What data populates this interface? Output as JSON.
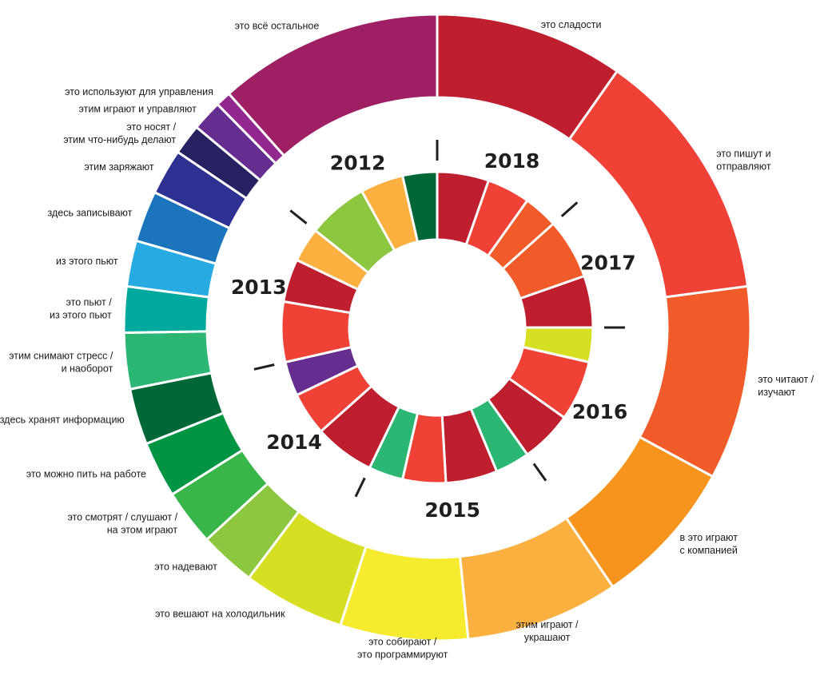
{
  "chart_data": {
    "type": "pie",
    "outer_ring": {
      "categories": [
        {
          "label": [
            "это сладости"
          ],
          "value": 37,
          "color": "#be1e2d"
        },
        {
          "label": [
            "это пишут и",
            "отправляют"
          ],
          "value": 50,
          "color": "#ef4136"
        },
        {
          "label": [
            "это читают /",
            "изучают"
          ],
          "value": 38,
          "color": "#f15a29"
        },
        {
          "label": [
            "в это играют",
            "с компанией"
          ],
          "value": 29,
          "color": "#f7941d"
        },
        {
          "label": [
            "этим играют /",
            "украшают"
          ],
          "value": 30,
          "color": "#fbb040"
        },
        {
          "label": [
            "это собирают /",
            "это программируют"
          ],
          "value": 25,
          "color": "#f6eb2e"
        },
        {
          "label": [
            "это вешают на холодильник"
          ],
          "value": 20,
          "color": "#d7df23"
        },
        {
          "label": [
            "это надевают"
          ],
          "value": 11,
          "color": "#8dc63f"
        },
        {
          "label": [
            "это смотрят / слушают /",
            "на этом играют"
          ],
          "value": 11,
          "color": "#39b54a"
        },
        {
          "label": [
            "это можно пить на работе"
          ],
          "value": 11,
          "color": "#009444"
        },
        {
          "label": [
            "здесь хранят информацию"
          ],
          "value": 11,
          "color": "#006838"
        },
        {
          "label": [
            "этим снимают стресс /",
            "и наоборот"
          ],
          "value": 11,
          "color": "#2bb673"
        },
        {
          "label": [
            "это пьют /",
            "из этого пьют"
          ],
          "value": 9,
          "color": "#00a99d"
        },
        {
          "label": [
            "из этого пьют"
          ],
          "value": 9,
          "color": "#27aae1"
        },
        {
          "label": [
            "здесь записывают"
          ],
          "value": 10,
          "color": "#1c75bc"
        },
        {
          "label": [
            "этим заряжают"
          ],
          "value": 9,
          "color": "#2e3192"
        },
        {
          "label": [
            "это носят /",
            "этим что-нибудь делают"
          ],
          "value": 6,
          "color": "#262262"
        },
        {
          "label": [
            "этим играют и управляют"
          ],
          "value": 6,
          "color": "#662d91"
        },
        {
          "label": [
            "это используют для управления"
          ],
          "value": 3,
          "color": "#92278f"
        },
        {
          "label": [
            "это всё остальное"
          ],
          "value": 44,
          "color": "#9e1f63"
        }
      ]
    },
    "inner_ring": {
      "years": [
        "2018",
        "2017",
        "2016",
        "2015",
        "2014",
        "2013",
        "2012"
      ],
      "segments": [
        {
          "year": "2018",
          "value": 6,
          "color": "#be1e2d"
        },
        {
          "year": "2018",
          "value": 5,
          "color": "#ef4136"
        },
        {
          "year": "2018",
          "value": 4,
          "color": "#f15a29"
        },
        {
          "year": "2017",
          "value": 7,
          "color": "#f15a29"
        },
        {
          "year": "2017",
          "value": 6,
          "color": "#be1e2d"
        },
        {
          "year": "2016",
          "value": 4,
          "color": "#d7df23"
        },
        {
          "year": "2016",
          "value": 7,
          "color": "#ef4136"
        },
        {
          "year": "2016",
          "value": 6,
          "color": "#be1e2d"
        },
        {
          "year": "2015",
          "value": 4,
          "color": "#2bb673"
        },
        {
          "year": "2015",
          "value": 6,
          "color": "#be1e2d"
        },
        {
          "year": "2015",
          "value": 5,
          "color": "#ef4136"
        },
        {
          "year": "2015",
          "value": 4,
          "color": "#2bb673"
        },
        {
          "year": "2014",
          "value": 7,
          "color": "#be1e2d"
        },
        {
          "year": "2014",
          "value": 5,
          "color": "#ef4136"
        },
        {
          "year": "2014",
          "value": 4,
          "color": "#662d91"
        },
        {
          "year": "2013",
          "value": 7,
          "color": "#ef4136"
        },
        {
          "year": "2013",
          "value": 5,
          "color": "#be1e2d"
        },
        {
          "year": "2013",
          "value": 4,
          "color": "#fbb040"
        },
        {
          "year": "2012",
          "value": 7,
          "color": "#8dc63f"
        },
        {
          "year": "2012",
          "value": 5,
          "color": "#fbb040"
        },
        {
          "year": "2012",
          "value": 4,
          "color": "#006838"
        }
      ]
    }
  }
}
